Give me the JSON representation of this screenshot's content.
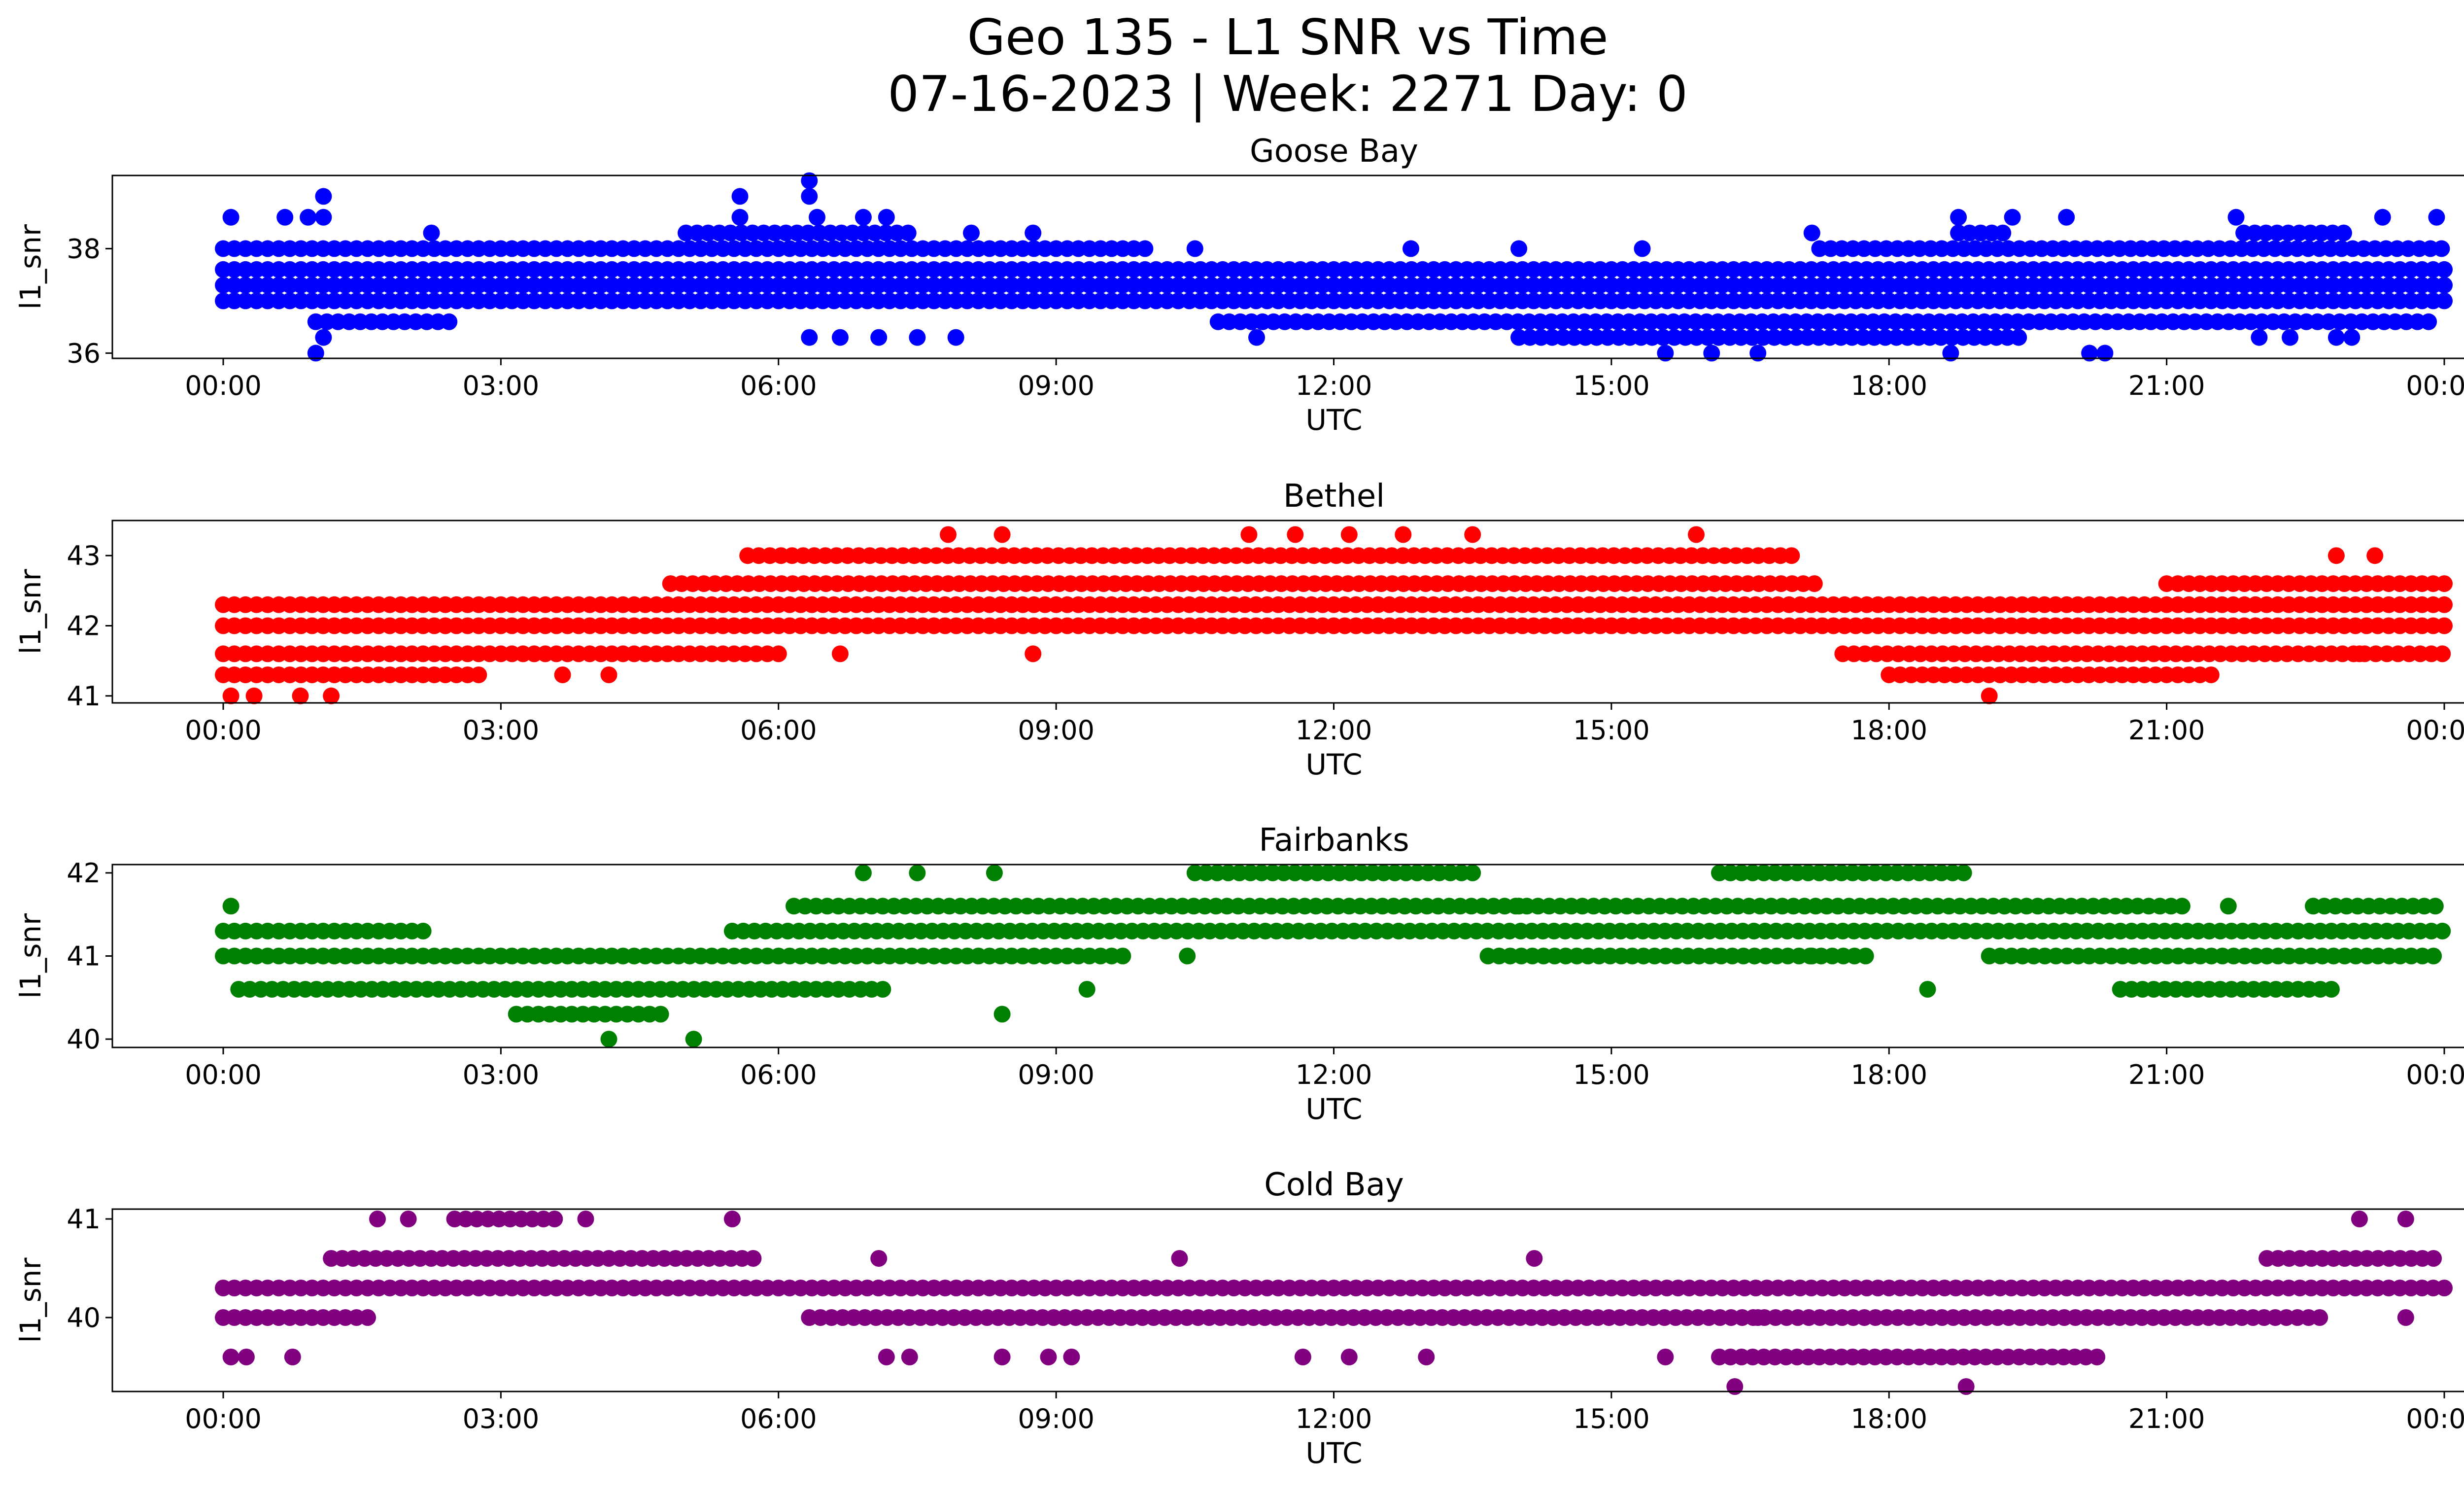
{
  "figure": {
    "title_line1": "Geo 135 - L1 SNR vs Time",
    "title_line2": "07-16-2023 | Week: 2271 Day: 0"
  },
  "chart_data": [
    {
      "type": "scatter",
      "title": "Goose Bay",
      "xlabel": "UTC",
      "ylabel": "l1_snr",
      "color": "#0000ff",
      "x_range": [
        "00:00",
        "24:00"
      ],
      "x_ticks": [
        "00:00",
        "03:00",
        "06:00",
        "09:00",
        "12:00",
        "15:00",
        "18:00",
        "21:00",
        "00:00"
      ],
      "ylim": [
        35.9,
        39.4
      ],
      "y_ticks": [
        36,
        38
      ],
      "series": [
        {
          "levels": [
            36.0,
            36.3,
            36.6,
            37.0,
            37.3,
            37.6,
            38.0,
            38.3,
            38.6,
            39.0,
            39.3
          ],
          "runs": [
            [
              37.0,
              "00:00",
              "24:00"
            ],
            [
              37.3,
              "00:00",
              "24:00"
            ],
            [
              37.6,
              "00:00",
              "24:00"
            ],
            [
              38.0,
              "00:00",
              "10:00"
            ],
            [
              38.0,
              "17:15",
              "24:00"
            ],
            [
              36.6,
              "01:00",
              "02:30"
            ],
            [
              36.6,
              "10:45",
              "23:50"
            ],
            [
              36.3,
              "14:00",
              "19:30"
            ],
            [
              38.3,
              "05:00",
              "07:30"
            ],
            [
              38.3,
              "18:45",
              "19:15"
            ],
            [
              38.3,
              "21:50",
              "23:00"
            ]
          ],
          "points": [
            [
              "00:05",
              38.6
            ],
            [
              "00:40",
              38.6
            ],
            [
              "00:55",
              38.6
            ],
            [
              "01:05",
              39.0
            ],
            [
              "01:05",
              38.6
            ],
            [
              "01:00",
              36.0
            ],
            [
              "01:05",
              36.3
            ],
            [
              "02:15",
              38.3
            ],
            [
              "05:35",
              39.0
            ],
            [
              "05:35",
              38.6
            ],
            [
              "06:20",
              39.3
            ],
            [
              "06:20",
              39.0
            ],
            [
              "06:25",
              38.6
            ],
            [
              "06:55",
              38.6
            ],
            [
              "07:10",
              38.6
            ],
            [
              "06:20",
              36.3
            ],
            [
              "06:40",
              36.3
            ],
            [
              "07:05",
              36.3
            ],
            [
              "07:30",
              36.3
            ],
            [
              "07:55",
              36.3
            ],
            [
              "08:05",
              38.3
            ],
            [
              "08:45",
              38.3
            ],
            [
              "10:30",
              38.0
            ],
            [
              "11:10",
              36.3
            ],
            [
              "12:50",
              38.0
            ],
            [
              "14:00",
              38.0
            ],
            [
              "15:20",
              38.0
            ],
            [
              "15:35",
              36.0
            ],
            [
              "16:05",
              36.0
            ],
            [
              "16:35",
              36.0
            ],
            [
              "17:10",
              38.3
            ],
            [
              "18:40",
              36.0
            ],
            [
              "18:45",
              38.6
            ],
            [
              "19:20",
              38.6
            ],
            [
              "19:55",
              38.6
            ],
            [
              "20:10",
              36.0
            ],
            [
              "20:20",
              36.0
            ],
            [
              "21:45",
              38.6
            ],
            [
              "22:00",
              36.3
            ],
            [
              "22:20",
              36.3
            ],
            [
              "22:50",
              36.3
            ],
            [
              "23:00",
              36.3
            ],
            [
              "23:20",
              38.6
            ],
            [
              "23:55",
              38.6
            ]
          ]
        }
      ]
    },
    {
      "type": "scatter",
      "title": "Bethel",
      "xlabel": "UTC",
      "ylabel": "l1_snr",
      "color": "#ff0000",
      "x_range": [
        "00:00",
        "24:00"
      ],
      "x_ticks": [
        "00:00",
        "03:00",
        "06:00",
        "09:00",
        "12:00",
        "15:00",
        "18:00",
        "21:00",
        "00:00"
      ],
      "ylim": [
        40.9,
        43.5
      ],
      "y_ticks": [
        41,
        42,
        43
      ],
      "series": [
        {
          "levels": [
            41.0,
            41.3,
            41.6,
            42.0,
            42.3,
            42.6,
            43.0,
            43.3
          ],
          "runs": [
            [
              41.6,
              "00:00",
              "06:00"
            ],
            [
              41.6,
              "17:30",
              "24:00"
            ],
            [
              42.0,
              "00:00",
              "24:00"
            ],
            [
              41.3,
              "00:00",
              "02:50"
            ],
            [
              41.3,
              "18:00",
              "21:30"
            ],
            [
              42.3,
              "00:00",
              "24:00"
            ],
            [
              42.6,
              "04:50",
              "17:15"
            ],
            [
              42.6,
              "21:00",
              "24:00"
            ],
            [
              43.0,
              "05:40",
              "17:00"
            ]
          ],
          "points": [
            [
              "00:05",
              41.0
            ],
            [
              "00:20",
              41.0
            ],
            [
              "00:50",
              41.0
            ],
            [
              "01:10",
              41.0
            ],
            [
              "07:50",
              43.3
            ],
            [
              "08:25",
              43.3
            ],
            [
              "11:05",
              43.3
            ],
            [
              "11:35",
              43.3
            ],
            [
              "12:10",
              43.3
            ],
            [
              "12:45",
              43.3
            ],
            [
              "13:30",
              43.3
            ],
            [
              "15:55",
              43.3
            ],
            [
              "19:05",
              41.0
            ],
            [
              "22:50",
              43.0
            ],
            [
              "23:15",
              43.0
            ],
            [
              "06:40",
              41.6
            ],
            [
              "08:45",
              41.6
            ],
            [
              "03:40",
              41.3
            ],
            [
              "04:10",
              41.3
            ],
            [
              "23:05",
              41.6
            ]
          ]
        }
      ]
    },
    {
      "type": "scatter",
      "title": "Fairbanks",
      "xlabel": "UTC",
      "ylabel": "l1_snr",
      "color": "#008000",
      "x_range": [
        "00:00",
        "24:00"
      ],
      "x_ticks": [
        "00:00",
        "03:00",
        "06:00",
        "09:00",
        "12:00",
        "15:00",
        "18:00",
        "21:00",
        "00:00"
      ],
      "ylim": [
        39.9,
        42.1
      ],
      "y_ticks": [
        40,
        41,
        42
      ],
      "series": [
        {
          "levels": [
            40.0,
            40.3,
            40.6,
            41.0,
            41.3,
            41.6,
            42.0
          ],
          "runs": [
            [
              41.0,
              "00:00",
              "09:45"
            ],
            [
              41.0,
              "13:40",
              "17:45"
            ],
            [
              41.0,
              "19:05",
              "24:00"
            ],
            [
              41.3,
              "00:00",
              "02:10"
            ],
            [
              41.3,
              "05:30",
              "24:00"
            ],
            [
              40.6,
              "00:10",
              "07:10"
            ],
            [
              40.6,
              "20:30",
              "22:50"
            ],
            [
              41.6,
              "06:10",
              "21:15"
            ],
            [
              41.6,
              "22:35",
              "24:00"
            ],
            [
              42.0,
              "10:30",
              "13:30"
            ],
            [
              42.0,
              "16:10",
              "18:50"
            ],
            [
              40.3,
              "03:10",
              "04:50"
            ]
          ],
          "points": [
            [
              "00:05",
              41.6
            ],
            [
              "04:10",
              40.0
            ],
            [
              "05:05",
              40.0
            ],
            [
              "06:55",
              42.0
            ],
            [
              "07:30",
              42.0
            ],
            [
              "08:20",
              42.0
            ],
            [
              "09:20",
              40.6
            ],
            [
              "10:25",
              41.0
            ],
            [
              "14:00",
              41.6
            ],
            [
              "17:10",
              41.0
            ],
            [
              "18:25",
              40.6
            ],
            [
              "21:40",
              41.6
            ],
            [
              "08:25",
              40.3
            ]
          ]
        }
      ]
    },
    {
      "type": "scatter",
      "title": "Cold Bay",
      "xlabel": "UTC",
      "ylabel": "l1_snr",
      "color": "#800080",
      "x_range": [
        "00:00",
        "24:00"
      ],
      "x_ticks": [
        "00:00",
        "03:00",
        "06:00",
        "09:00",
        "12:00",
        "15:00",
        "18:00",
        "21:00",
        "00:00"
      ],
      "ylim": [
        39.25,
        41.1
      ],
      "y_ticks": [
        40,
        41
      ],
      "series": [
        {
          "levels": [
            39.3,
            39.6,
            40.0,
            40.3,
            40.6,
            41.0
          ],
          "runs": [
            [
              40.3,
              "00:00",
              "24:00"
            ],
            [
              40.0,
              "00:00",
              "01:40"
            ],
            [
              40.0,
              "06:20",
              "22:40"
            ],
            [
              40.6,
              "01:10",
              "05:50"
            ],
            [
              40.6,
              "22:05",
              "24:00"
            ],
            [
              41.0,
              "02:30",
              "03:35"
            ],
            [
              39.6,
              "16:10",
              "20:20"
            ]
          ],
          "points": [
            [
              "00:05",
              39.6
            ],
            [
              "00:15",
              39.6
            ],
            [
              "00:45",
              39.6
            ],
            [
              "01:40",
              41.0
            ],
            [
              "02:00",
              41.0
            ],
            [
              "03:55",
              41.0
            ],
            [
              "05:30",
              41.0
            ],
            [
              "07:10",
              39.6
            ],
            [
              "07:25",
              39.6
            ],
            [
              "08:25",
              39.6
            ],
            [
              "08:55",
              39.6
            ],
            [
              "09:10",
              39.6
            ],
            [
              "11:40",
              39.6
            ],
            [
              "12:10",
              39.6
            ],
            [
              "13:00",
              39.6
            ],
            [
              "15:35",
              39.6
            ],
            [
              "16:20",
              39.3
            ],
            [
              "18:50",
              39.3
            ],
            [
              "23:05",
              41.0
            ],
            [
              "23:35",
              41.0
            ],
            [
              "23:35",
              40.0
            ],
            [
              "07:05",
              40.6
            ],
            [
              "10:20",
              40.6
            ],
            [
              "14:10",
              40.6
            ],
            [
              "16:35",
              40.0
            ]
          ]
        }
      ]
    }
  ]
}
